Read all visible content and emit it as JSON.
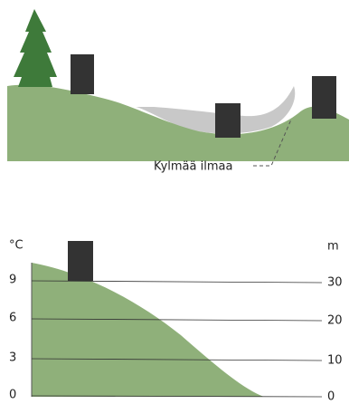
{
  "top": {
    "label": "Kylmää ilmaa"
  },
  "bottom": {
    "left_axis": {
      "unit": "°C",
      "ticks": [
        9,
        6,
        3,
        0
      ]
    },
    "right_axis": {
      "unit": "m",
      "ticks": [
        30,
        20,
        10,
        0
      ]
    }
  }
}
